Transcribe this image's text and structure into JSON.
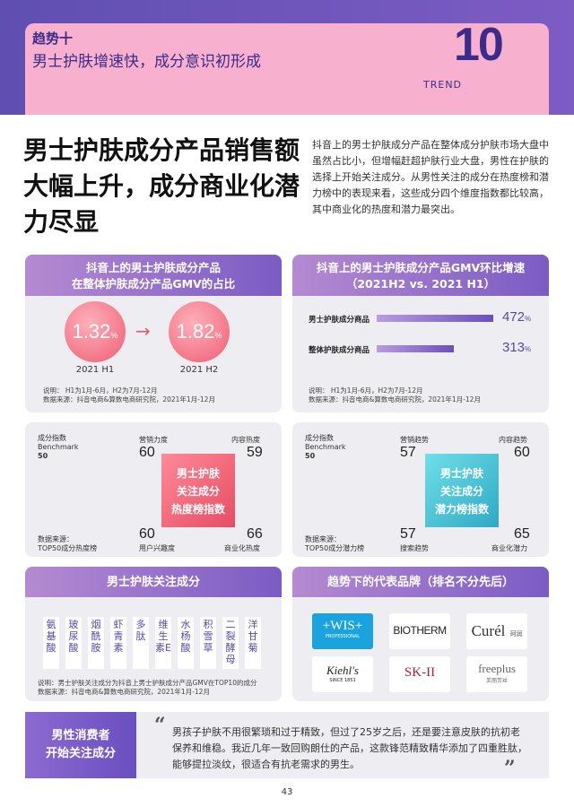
{
  "header": {
    "trend_label": "趋势十",
    "trend_title": "男士护肤增速快，成分意识初形成",
    "trend_en": "TREND",
    "trend_num": "10"
  },
  "main": {
    "title": "男士护肤成分产品销售额大幅上升，成分商业化潜力尽显",
    "intro": "抖音上的男士护肤成分产品在整体成分护肤市场大盘中虽然占比小，但增幅赶超护肤行业大盘，男性在护肤的选择上开始关注成分。从男性关注的成分在热度榜和潜力榜中的表现来看，这些成分四个维度指数都比较高，其中商业化的热度和潜力最突出。"
  },
  "share_card": {
    "title_line1": "抖音上的男士护肤成分产品",
    "title_line2": "在整体护肤成分产品GMV的占比",
    "h1_value": "1.32",
    "h1_unit": "%",
    "h1_label": "2021 H1",
    "h2_value": "1.82",
    "h2_unit": "%",
    "h2_label": "2021 H2",
    "arrow": "→",
    "note1": "说明：  H1为1月-6月，H2为7月-12月",
    "note2": "数据来源：抖音电商&算数电商研究院，2021年1月-12月"
  },
  "growth_card": {
    "title_line1": "抖音上的男士护肤成分产品GMV环比增速",
    "title_line2": "（2021H2 vs. 2021 H1）",
    "bars": [
      {
        "label": "男士护肤成分商品",
        "value": "472",
        "unit": "%",
        "fraction": 1.0
      },
      {
        "label": "整体护肤成分商品",
        "value": "313",
        "unit": "%",
        "fraction": 0.663
      }
    ],
    "note1": "说明：  H1为1月-6月，H2为7月-12月",
    "note2": "数据来源：抖音电商&算数电商研究院，2021年1月-12月"
  },
  "heat_card": {
    "benchmark_l1": "成分指数",
    "benchmark_l2": "Benchmark",
    "benchmark_val": "50",
    "tl_label": "营销力度",
    "tl_value": "60",
    "tr_label": "内容热度",
    "tr_value": "59",
    "bl_value": "60",
    "bl_label": "用户兴趣度",
    "br_value": "66",
    "br_label": "商业化热度",
    "box_l1": "男士护肤",
    "box_l2": "关注成分",
    "box_l3": "热度榜指数",
    "source1": "数据来源：",
    "source2": "TOP50成分热度榜"
  },
  "potential_card": {
    "benchmark_l1": "成分指数",
    "benchmark_l2": "Benchmark",
    "benchmark_val": "50",
    "tl_label": "营销趋势",
    "tl_value": "57",
    "tr_label": "内容趋势",
    "tr_value": "60",
    "bl_value": "57",
    "bl_label": "搜索趋势",
    "br_value": "65",
    "br_label": "商业化潜力",
    "box_l1": "男士护肤",
    "box_l2": "关注成分",
    "box_l3": "潜力榜指数",
    "source1": "数据来源：",
    "source2": "TOP50成分潜力榜"
  },
  "ingredients_card": {
    "title": "男士护肤关注成分",
    "items": [
      "氨基酸",
      "玻尿酸",
      "烟酰胺",
      "虾青素",
      "多肽",
      "维生素E",
      "水杨酸",
      "积雪草",
      "二裂酵母",
      "洋甘菊"
    ],
    "note1": "说明：男士护肤关注成分为抖音上男士护肤成分产品GMV在TOP10的成分",
    "note2": "数据来源：抖音电商&算数电商研究院，2021年1月-12月"
  },
  "brands_card": {
    "title": "趋势下的代表品牌（排名不分先后）",
    "brands": [
      "+WIS+",
      "PROFESSIONAL",
      "BIOTHERM",
      "Curél",
      "珂润",
      "Kiehl's",
      "SINCE 1851",
      "SK-II",
      "freeplus",
      "芙丽芳丝"
    ]
  },
  "quote": {
    "label_l1": "男性消费者",
    "label_l2": "开始关注成分",
    "open_mark": "“",
    "close_mark": "”",
    "text": "男孩子护肤不用很繁琐和过于精致，但过了25岁之后，还是要注意皮肤的抗初老保养和维稳。我近几年一致回购朗仕的产品，这款锋范精致精华添加了四重胜肽，能够提拉淡纹，很适合有抗老需求的男生。"
  },
  "page_number": "43",
  "colors": {
    "purple": "#5f4fb0",
    "pink": "#f7b0cd",
    "red": "#e64d63",
    "teal": "#2fa9c4"
  }
}
